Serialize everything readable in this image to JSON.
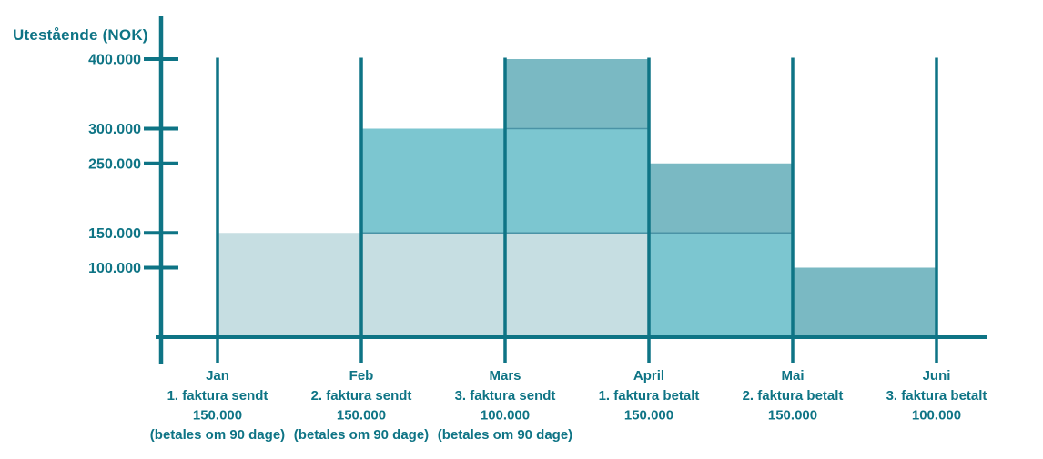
{
  "chart_data": {
    "type": "area",
    "subtype": "stacked-step-area",
    "title": "",
    "xlabel": "",
    "ylabel": "Utestående (NOK)",
    "ylim": [
      0,
      400000
    ],
    "ymax": 400000,
    "grid": false,
    "legend": "none",
    "colors": {
      "accent": "#0e7485",
      "boundary": "#4a93a6",
      "background": "#ffffff"
    },
    "y_ticks": [
      {
        "value": 400000,
        "label": "400.000"
      },
      {
        "value": 300000,
        "label": "300.000"
      },
      {
        "value": 250000,
        "label": "250.000"
      },
      {
        "value": 150000,
        "label": "150.000"
      },
      {
        "value": 100000,
        "label": "100.000"
      }
    ],
    "x_labels": [
      {
        "month": "Jan",
        "lines": [
          "1. faktura sendt",
          "150.000",
          "(betales om 90 dage)"
        ]
      },
      {
        "month": "Feb",
        "lines": [
          "2. faktura sendt",
          "150.000",
          "(betales om 90 dage)"
        ]
      },
      {
        "month": "Mars",
        "lines": [
          "3. faktura sendt",
          "100.000",
          "(betales om 90 dage)"
        ]
      },
      {
        "month": "April",
        "lines": [
          "1. faktura betalt",
          "150.000"
        ]
      },
      {
        "month": "Mai",
        "lines": [
          "2. faktura betalt",
          "150.000"
        ]
      },
      {
        "month": "Juni",
        "lines": [
          "3. faktura betalt",
          "100.000"
        ]
      }
    ],
    "series": [
      {
        "name": "1. faktura",
        "color": "#c6dee2",
        "segments": [
          {
            "from": "Jan",
            "to": "April",
            "y0": 0,
            "y1": 150000
          }
        ]
      },
      {
        "name": "2. faktura",
        "color": "#7cc6d0",
        "segments": [
          {
            "from": "Feb",
            "to": "April",
            "y0": 150000,
            "y1": 300000
          },
          {
            "from": "April",
            "to": "Mai",
            "y0": 0,
            "y1": 150000
          }
        ]
      },
      {
        "name": "3. faktura",
        "color": "#7ab9c3",
        "segments": [
          {
            "from": "Mars",
            "to": "April",
            "y0": 300000,
            "y1": 400000
          },
          {
            "from": "April",
            "to": "Mai",
            "y0": 150000,
            "y1": 250000
          },
          {
            "from": "Mai",
            "to": "Juni",
            "y0": 0,
            "y1": 100000
          }
        ]
      }
    ],
    "levels_between_months": [
      {
        "from": "Jan",
        "to": "Feb",
        "total_outstanding": 150000
      },
      {
        "from": "Feb",
        "to": "Mars",
        "total_outstanding": 300000
      },
      {
        "from": "Mars",
        "to": "April",
        "total_outstanding": 400000
      },
      {
        "from": "April",
        "to": "Mai",
        "total_outstanding": 250000
      },
      {
        "from": "Mai",
        "to": "Juni",
        "total_outstanding": 100000
      }
    ]
  }
}
